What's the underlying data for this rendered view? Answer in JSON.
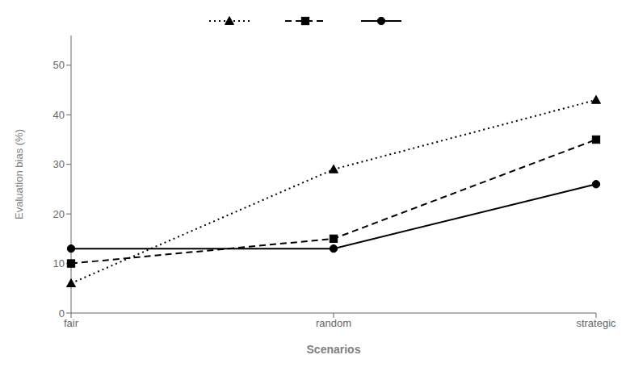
{
  "chart_data": {
    "type": "line",
    "xlabel": "Scenarios",
    "ylabel": "Evaluation bias (%)",
    "categories": [
      "fair",
      "random",
      "strategic"
    ],
    "series": [
      {
        "color": "#000000",
        "marker": "triangle",
        "line_style": "dotted",
        "values": [
          6,
          29,
          43
        ]
      },
      {
        "color": "#000000",
        "marker": "square",
        "line_style": "dashed",
        "values": [
          10,
          15,
          35
        ]
      },
      {
        "color": "#000000",
        "marker": "circle",
        "line_style": "solid",
        "values": [
          13,
          13,
          26
        ]
      }
    ],
    "ylim": [
      0,
      56
    ],
    "yticks": [
      0,
      10,
      20,
      30,
      40,
      50
    ],
    "legend": "top"
  }
}
